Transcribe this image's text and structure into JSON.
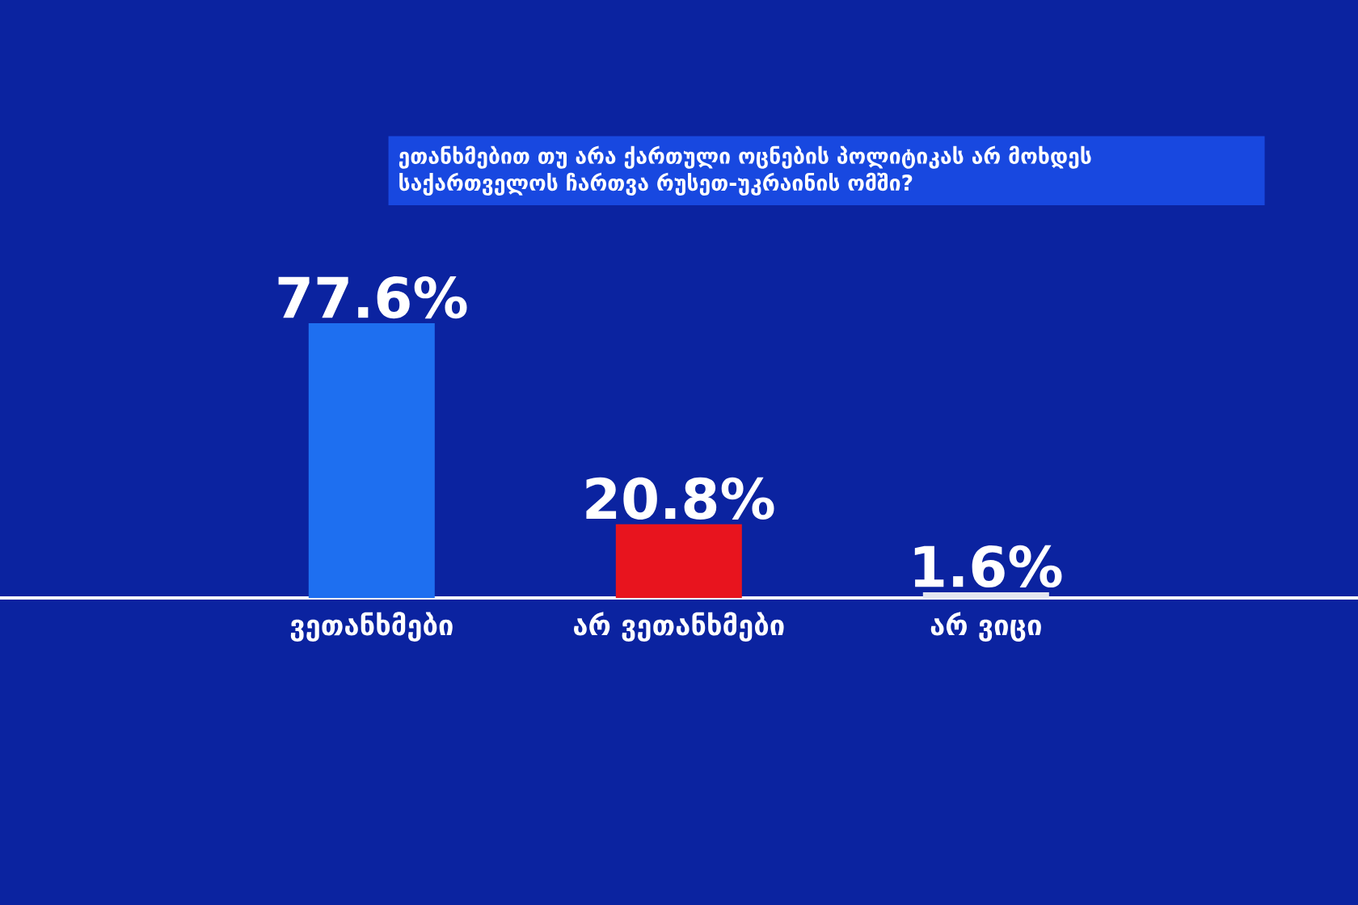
{
  "chart_data": {
    "type": "bar",
    "title": "ეთანხმებით თუ არა ქართული ოცნების პოლიტიკას არ მოხდეს საქართველოს ჩართვა რუსეთ-უკრაინის ომში?",
    "categories": [
      "ვეთანხმები",
      "არ ვეთანხმები",
      "არ ვიცი"
    ],
    "values": [
      77.6,
      20.8,
      1.6
    ],
    "colors": [
      "#1e6ff0",
      "#e8141e",
      "#e4e6f0"
    ],
    "value_labels": [
      "77.6%",
      "20.8%",
      "1.6%"
    ]
  }
}
